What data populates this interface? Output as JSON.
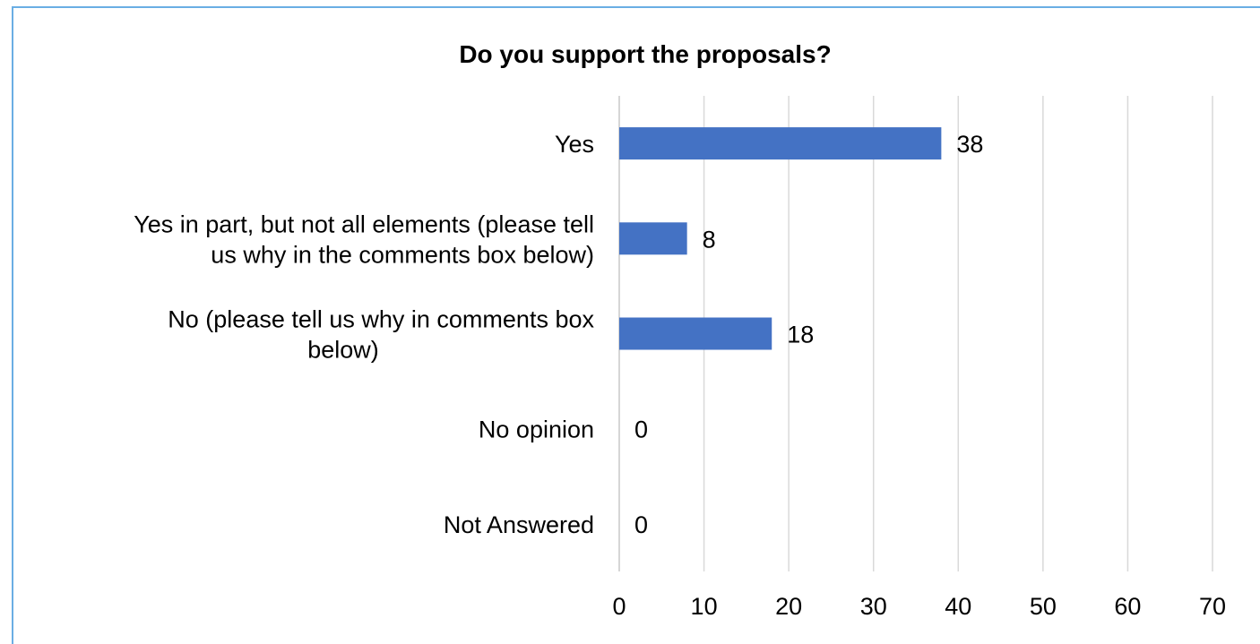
{
  "chart_data": {
    "type": "bar",
    "orientation": "horizontal",
    "title": "Do you support the proposals?",
    "categories": [
      [
        "Yes"
      ],
      [
        "Yes in part, but not all elements (please tell",
        "us why in the comments box below)"
      ],
      [
        "No (please tell us why in comments box",
        "below)"
      ],
      [
        "No opinion"
      ],
      [
        "Not Answered"
      ]
    ],
    "values": [
      38,
      8,
      18,
      0,
      0
    ],
    "data_labels": [
      "38",
      "8",
      "18",
      "0",
      "0"
    ],
    "xlim": [
      0,
      70
    ],
    "x_ticks": [
      "0",
      "10",
      "20",
      "30",
      "40",
      "50",
      "60",
      "70"
    ],
    "grid": "vertical",
    "legend": "none",
    "bar_color": "#4472c4",
    "grid_color": "#d9d9d9",
    "frame_color": "#6aaee4"
  }
}
